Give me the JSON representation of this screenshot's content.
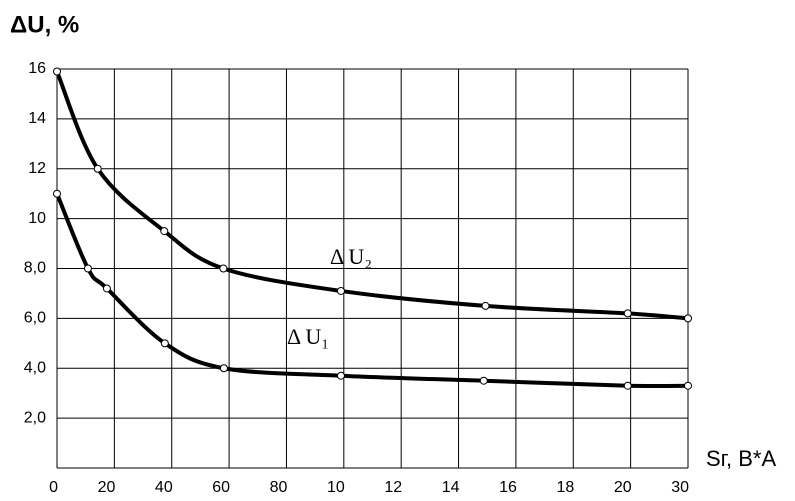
{
  "chart_data": {
    "type": "line",
    "y_label": "ΔU, %",
    "x_label": "Sг, В*А",
    "xlim": [
      0,
      11
    ],
    "xticks": [
      {
        "value": 0,
        "label": "0"
      },
      {
        "value": 1,
        "label": "20"
      },
      {
        "value": 2,
        "label": "40"
      },
      {
        "value": 3,
        "label": "60"
      },
      {
        "value": 4,
        "label": "80"
      },
      {
        "value": 5,
        "label": "10"
      },
      {
        "value": 6,
        "label": "12"
      },
      {
        "value": 7,
        "label": "14"
      },
      {
        "value": 8,
        "label": "16"
      },
      {
        "value": 9,
        "label": "18"
      },
      {
        "value": 10,
        "label": "20"
      },
      {
        "value": 11,
        "label": "30"
      }
    ],
    "ylim": [
      0,
      16
    ],
    "yticks": [
      {
        "value": 2,
        "label": "2,0"
      },
      {
        "value": 4,
        "label": "4,0"
      },
      {
        "value": 6,
        "label": "6,0"
      },
      {
        "value": 8,
        "label": "8,0"
      },
      10,
      12,
      14,
      16
    ],
    "grid": true,
    "series": [
      {
        "name": "Δ U₂",
        "color": "#000000",
        "x": [
          0,
          0.71,
          1.87,
          2.9,
          4.95,
          7.47,
          9.95,
          11
        ],
        "values": [
          15.9,
          12,
          9.5,
          8.0,
          7.1,
          6.5,
          6.2,
          6.0
        ]
      },
      {
        "name": "Δ U₁",
        "color": "#000000",
        "x": [
          0,
          0.54,
          0.87,
          1.88,
          2.91,
          4.95,
          7.44,
          9.95,
          11
        ],
        "values": [
          11,
          8.0,
          7.2,
          5.0,
          4.0,
          3.7,
          3.5,
          3.3,
          3.3
        ]
      }
    ]
  }
}
